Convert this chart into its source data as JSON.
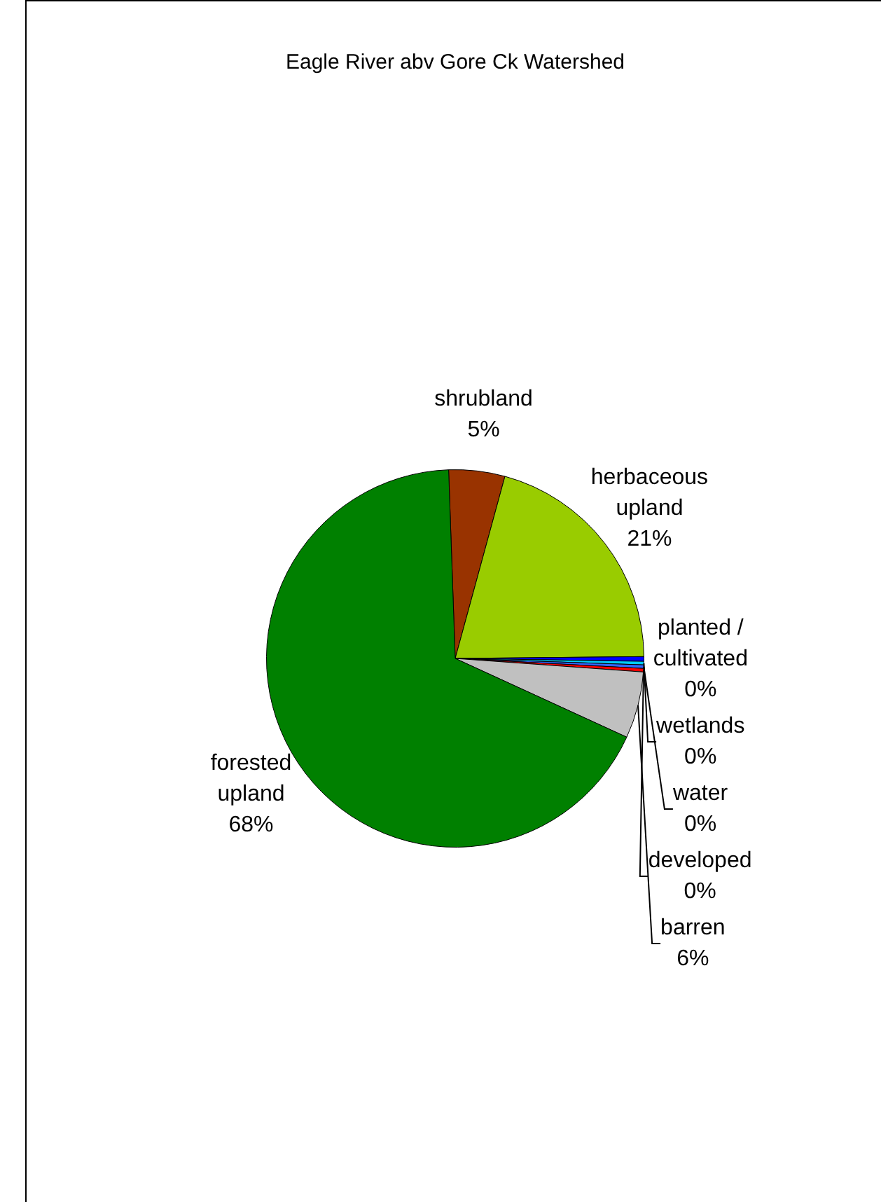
{
  "chart_data": {
    "type": "pie",
    "title": "Eagle River abv Gore Ck Watershed",
    "categories": [
      "shrubland",
      "herbaceous upland",
      "planted / cultivated",
      "wetlands",
      "water",
      "developed",
      "barren",
      "forested upland"
    ],
    "values": [
      4.8,
      20.6,
      0.4,
      0.3,
      0.3,
      0.3,
      5.7,
      67.6
    ],
    "colors": [
      "#993300",
      "#99cc00",
      "#0000ff",
      "#00ccff",
      "#3366ff",
      "#ff0000",
      "#c0c0c0",
      "#008000"
    ],
    "value_labels": [
      "5%",
      "21%",
      "0%",
      "0%",
      "0%",
      "0%",
      "6%",
      "68%"
    ],
    "legend": false
  }
}
